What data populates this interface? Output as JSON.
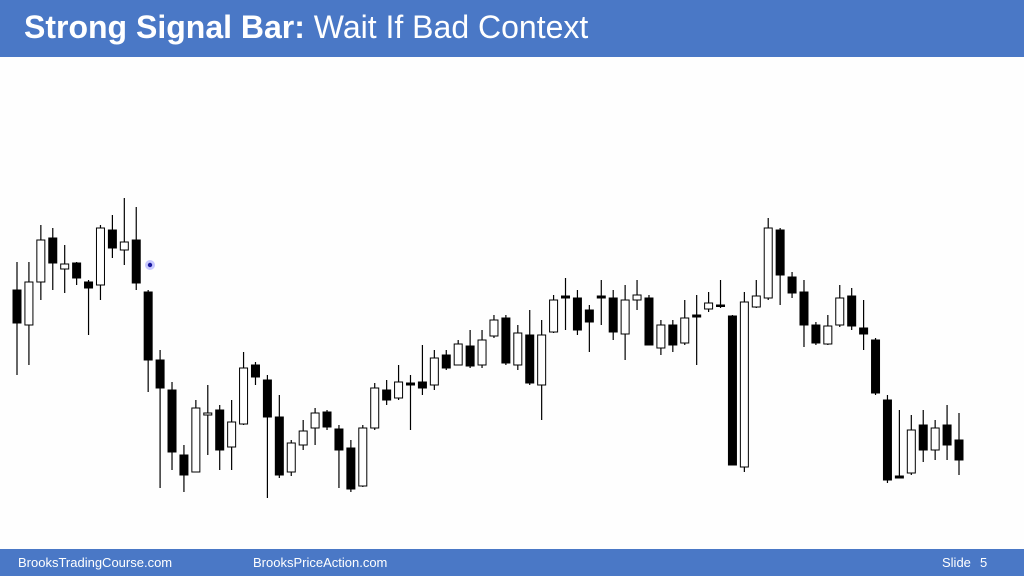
{
  "header": {
    "title_bold": "Strong Signal Bar:",
    "title_rest": "Wait If Bad Context"
  },
  "footer": {
    "left": "BrooksTradingCourse.com",
    "center": "BrooksPriceAction.com",
    "slide_label": "Slide",
    "slide_number": "5"
  },
  "chart_data": {
    "type": "candlestick",
    "ylim": [
      0,
      485
    ],
    "up_color": "#ffffff",
    "down_color": "#000000",
    "open": [
      255,
      220,
      263,
      307,
      276,
      282,
      263,
      260,
      315,
      295,
      305,
      253,
      185,
      155,
      90,
      73,
      130,
      135,
      98,
      121,
      180,
      165,
      128,
      73,
      100,
      117,
      133,
      116,
      97,
      59,
      117,
      155,
      147,
      162,
      163,
      160,
      190,
      180,
      199,
      180,
      209,
      227,
      180,
      210,
      160,
      213,
      249,
      247,
      235,
      249,
      247,
      211,
      245,
      247,
      197,
      220,
      202,
      230,
      236,
      240,
      229,
      78,
      238,
      247,
      315,
      268,
      253,
      220,
      201,
      220,
      249,
      217,
      205,
      145,
      69,
      72,
      120,
      95,
      120,
      105
    ],
    "high": [
      283,
      283,
      320,
      317,
      300,
      283,
      265,
      320,
      330,
      347,
      338,
      255,
      195,
      163,
      100,
      145,
      160,
      140,
      145,
      193,
      183,
      170,
      150,
      105,
      125,
      137,
      135,
      120,
      105,
      120,
      162,
      165,
      180,
      170,
      200,
      195,
      195,
      205,
      215,
      215,
      230,
      230,
      220,
      235,
      225,
      250,
      267,
      255,
      240,
      265,
      255,
      260,
      265,
      250,
      225,
      225,
      245,
      250,
      253,
      265,
      230,
      253,
      265,
      327,
      317,
      273,
      265,
      223,
      230,
      260,
      257,
      245,
      207,
      150,
      135,
      130,
      135,
      125,
      140,
      132
    ],
    "low": [
      170,
      180,
      245,
      255,
      252,
      260,
      210,
      245,
      287,
      280,
      255,
      153,
      57,
      75,
      53,
      73,
      90,
      75,
      75,
      120,
      160,
      47,
      67,
      69,
      95,
      100,
      115,
      57,
      53,
      58,
      115,
      140,
      145,
      115,
      150,
      155,
      175,
      180,
      177,
      177,
      207,
      180,
      175,
      160,
      125,
      212,
      215,
      210,
      193,
      220,
      205,
      185,
      235,
      200,
      190,
      193,
      200,
      180,
      233,
      237,
      80,
      73,
      237,
      245,
      240,
      247,
      198,
      200,
      200,
      218,
      215,
      195,
      150,
      62,
      67,
      70,
      83,
      85,
      85,
      70
    ],
    "close": [
      222,
      263,
      305,
      282,
      281,
      267,
      257,
      317,
      297,
      303,
      262,
      185,
      157,
      93,
      70,
      137,
      132,
      95,
      123,
      177,
      168,
      128,
      70,
      102,
      114,
      132,
      118,
      95,
      56,
      117,
      157,
      145,
      163,
      160,
      157,
      187,
      177,
      201,
      179,
      205,
      225,
      182,
      212,
      162,
      210,
      245,
      247,
      215,
      223,
      247,
      213,
      245,
      250,
      200,
      220,
      200,
      227,
      228,
      242,
      239,
      80,
      243,
      249,
      317,
      270,
      252,
      220,
      202,
      219,
      247,
      219,
      211,
      152,
      65,
      67,
      115,
      95,
      117,
      100,
      85
    ]
  }
}
